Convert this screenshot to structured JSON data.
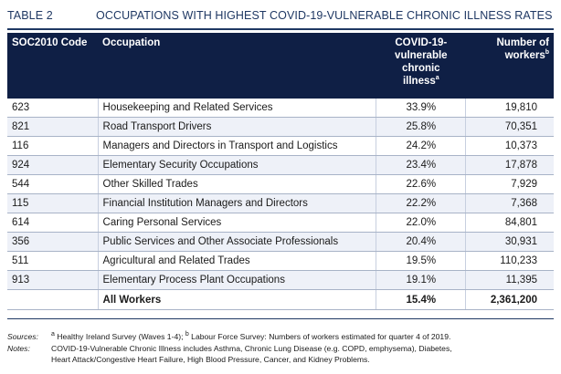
{
  "table_number": "TABLE 2",
  "title": "OCCUPATIONS WITH HIGHEST COVID-19-VULNERABLE CHRONIC ILLNESS RATES",
  "headers": {
    "code": "SOC2010 Code",
    "occupation": "Occupation",
    "rate_line1": "COVID-19-",
    "rate_line2": "vulnerable",
    "rate_line3": "chronic",
    "rate_line4": "illness",
    "rate_sup": "a",
    "workers_line1": "Number of",
    "workers_line2": "workers",
    "workers_sup": "b"
  },
  "rows": [
    {
      "code": "623",
      "occupation": "Housekeeping and Related Services",
      "rate": "33.9%",
      "workers": "19,810"
    },
    {
      "code": "821",
      "occupation": "Road Transport Drivers",
      "rate": "25.8%",
      "workers": "70,351"
    },
    {
      "code": "116",
      "occupation": "Managers and Directors in Transport and Logistics",
      "rate": "24.2%",
      "workers": "10,373"
    },
    {
      "code": "924",
      "occupation": "Elementary Security Occupations",
      "rate": "23.4%",
      "workers": "17,878"
    },
    {
      "code": "544",
      "occupation": "Other Skilled Trades",
      "rate": "22.6%",
      "workers": "7,929"
    },
    {
      "code": "115",
      "occupation": "Financial Institution Managers and Directors",
      "rate": "22.2%",
      "workers": "7,368"
    },
    {
      "code": "614",
      "occupation": "Caring Personal Services",
      "rate": "22.0%",
      "workers": "84,801"
    },
    {
      "code": "356",
      "occupation": "Public Services and Other Associate Professionals",
      "rate": "20.4%",
      "workers": "30,931"
    },
    {
      "code": "511",
      "occupation": "Agricultural and Related Trades",
      "rate": "19.5%",
      "workers": "110,233"
    },
    {
      "code": "913",
      "occupation": "Elementary Process Plant Occupations",
      "rate": "19.1%",
      "workers": "11,395"
    }
  ],
  "total": {
    "code": "",
    "occupation": "All Workers",
    "rate": "15.4%",
    "workers": "2,361,200"
  },
  "sources_label": "Sources:",
  "sources_sup_a": "a",
  "sources_a": " Healthy Ireland Survey (Waves 1-4); ",
  "sources_sup_b": "b",
  "sources_b": " Labour Force Survey: Numbers of workers estimated for quarter 4 of 2019.",
  "notes_label": "Notes:",
  "notes_line1": "COVID-19-Vulnerable Chronic Illness includes Asthma, Chronic Lung Disease (e.g. COPD, emphysema), Diabetes,",
  "notes_line2": "Heart Attack/Congestive Heart Failure, High Blood Pressure, Cancer, and Kidney Problems.",
  "colors": {
    "header_bg": "#0f1f45",
    "title": "#1f3863",
    "alt_row": "#eef1f8"
  }
}
